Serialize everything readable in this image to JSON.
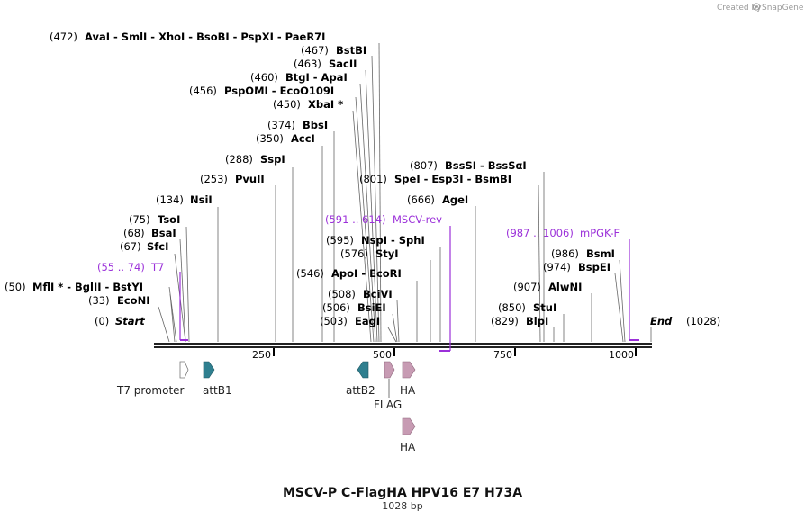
{
  "credit": {
    "created_by": "Created by",
    "brand": "SnapGene"
  },
  "map": {
    "title": "MSCV-P C-FlagHA HPV16 E7 H73A",
    "length_label": "1028 bp",
    "length": 1028,
    "ticks": [
      "250",
      "500",
      "750",
      "1000"
    ]
  },
  "labels": [
    {
      "id": "start",
      "pos": "(0)",
      "name": "Start",
      "bp": 0,
      "style": "end"
    },
    {
      "id": "end",
      "pos": "(1028)",
      "name": "End",
      "bp": 1028,
      "style": "end"
    },
    {
      "id": "ecoNI",
      "pos": "(33)",
      "name": "EcoNI",
      "bp": 33
    },
    {
      "id": "mflI",
      "pos": "(50)",
      "name": "MflI * - BglII - BstYI",
      "bp": 50
    },
    {
      "id": "sfcI",
      "pos": "(67)",
      "name": "SfcI",
      "bp": 67
    },
    {
      "id": "bsaI",
      "pos": "(68)",
      "name": "BsaI",
      "bp": 68
    },
    {
      "id": "tsoI",
      "pos": "(75)",
      "name": "TsoI",
      "bp": 75
    },
    {
      "id": "nsiI",
      "pos": "(134)",
      "name": "NsiI",
      "bp": 134
    },
    {
      "id": "pvuII",
      "pos": "(253)",
      "name": "PvuII",
      "bp": 253
    },
    {
      "id": "sspI",
      "pos": "(288)",
      "name": "SspI",
      "bp": 288
    },
    {
      "id": "accI",
      "pos": "(350)",
      "name": "AccI",
      "bp": 350
    },
    {
      "id": "bbsI",
      "pos": "(374)",
      "name": "BbsI",
      "bp": 374
    },
    {
      "id": "xbaI",
      "pos": "(450)",
      "name": "XbaI *",
      "bp": 450
    },
    {
      "id": "pspOMI",
      "pos": "(456)",
      "name": "PspOMI - EcoO109I",
      "bp": 456
    },
    {
      "id": "btgI",
      "pos": "(460)",
      "name": "BtgI - ApaI",
      "bp": 460
    },
    {
      "id": "sacII",
      "pos": "(463)",
      "name": "SacII",
      "bp": 463
    },
    {
      "id": "bstBI",
      "pos": "(467)",
      "name": "BstBI",
      "bp": 467
    },
    {
      "id": "avaI",
      "pos": "(472)",
      "name": "AvaI - SmlI - XhoI - BsoBI - PspXI - PaeR7I",
      "bp": 472
    },
    {
      "id": "eagI",
      "pos": "(503)",
      "name": "EagI",
      "bp": 503
    },
    {
      "id": "bsiEI",
      "pos": "(506)",
      "name": "BsiEI",
      "bp": 506
    },
    {
      "id": "bciVI",
      "pos": "(508)",
      "name": "BciVI",
      "bp": 508
    },
    {
      "id": "apoI",
      "pos": "(546)",
      "name": "ApoI - EcoRI",
      "bp": 546
    },
    {
      "id": "styI",
      "pos": "(576)",
      "name": "StyI",
      "bp": 576
    },
    {
      "id": "nspI",
      "pos": "(595)",
      "name": "NspI - SphI",
      "bp": 595
    },
    {
      "id": "ageI",
      "pos": "(666)",
      "name": "AgeI",
      "bp": 666
    },
    {
      "id": "speI",
      "pos": "(801)",
      "name": "SpeI - Esp3I - BsmBI",
      "bp": 801
    },
    {
      "id": "bssSI",
      "pos": "(807)",
      "name": "BssSI - BssSαI",
      "bp": 807
    },
    {
      "id": "blpI",
      "pos": "(829)",
      "name": "BlpI",
      "bp": 829
    },
    {
      "id": "stuI",
      "pos": "(850)",
      "name": "StuI",
      "bp": 850
    },
    {
      "id": "alwNI",
      "pos": "(907)",
      "name": "AlwNI",
      "bp": 907
    },
    {
      "id": "bspEI",
      "pos": "(974)",
      "name": "BspEI",
      "bp": 974
    },
    {
      "id": "bsmI",
      "pos": "(986)",
      "name": "BsmI",
      "bp": 986
    }
  ],
  "primers": [
    {
      "id": "t7",
      "range": "(55 .. 74)",
      "name": "T7",
      "start": 55,
      "end": 74
    },
    {
      "id": "mscvRev",
      "range": "(591 .. 614)",
      "name": "MSCV-rev",
      "start": 591,
      "end": 614
    },
    {
      "id": "mpgkF",
      "range": "(987 .. 1006)",
      "name": "mPGK-F",
      "start": 987,
      "end": 1006
    }
  ],
  "features": [
    {
      "id": "t7promoter",
      "name": "T7 promoter",
      "color": "#ffffff"
    },
    {
      "id": "attB1",
      "name": "attB1",
      "color": "#2f7f8f"
    },
    {
      "id": "attB2",
      "name": "attB2",
      "color": "#2f7f8f"
    },
    {
      "id": "flag",
      "name": "FLAG",
      "color": "#c79bb3"
    },
    {
      "id": "ha1",
      "name": "HA",
      "color": "#c79bb3"
    },
    {
      "id": "ha2",
      "name": "HA",
      "color": "#c79bb3"
    }
  ],
  "colors": {
    "primer": "#9b30d9",
    "feature_pink": "#c79bb3",
    "feature_teal": "#2f7f8f"
  }
}
